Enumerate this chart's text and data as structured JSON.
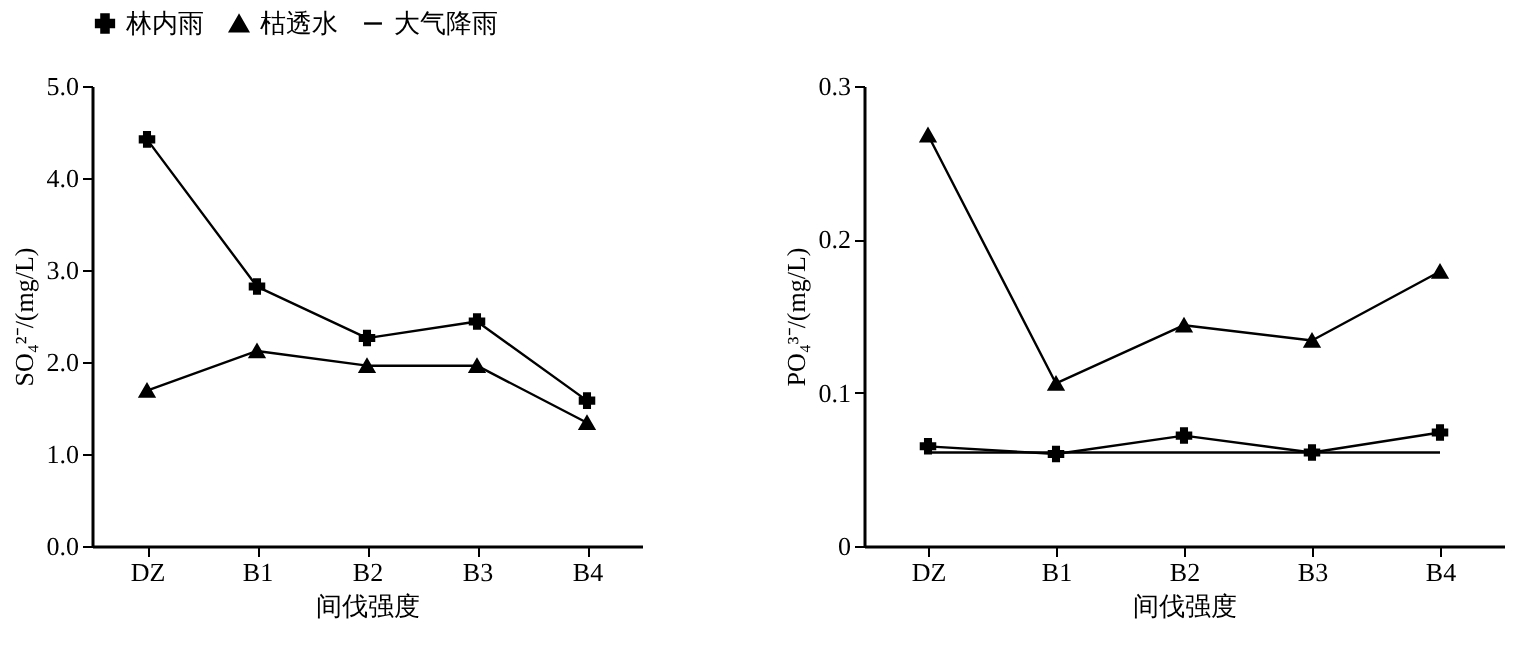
{
  "chart_data": [
    {
      "type": "line",
      "xlabel": "间伐强度",
      "ylabel": "SO₄²⁻/(mg/L)",
      "categories": [
        "DZ",
        "B1",
        "B2",
        "B3",
        "B4"
      ],
      "ylim": [
        0,
        5
      ],
      "yticks": [
        {
          "value": 0,
          "label": "0.0"
        },
        {
          "value": 1,
          "label": "1.0"
        },
        {
          "value": 2,
          "label": "2.0"
        },
        {
          "value": 3,
          "label": "3.0"
        },
        {
          "value": 4,
          "label": "4.0"
        },
        {
          "value": 5,
          "label": "5.0"
        }
      ],
      "grid": false,
      "legend": "top",
      "line_style": "solid",
      "series": [
        {
          "name": "林内雨",
          "color": "#000000",
          "marker": "cross",
          "values": [
            4.42,
            2.82,
            2.26,
            2.44,
            1.58
          ]
        },
        {
          "name": "枯透水",
          "color": "#000000",
          "marker": "triangle",
          "values": [
            1.69,
            2.12,
            1.96,
            1.96,
            1.34
          ]
        }
      ]
    },
    {
      "type": "line",
      "xlabel": "间伐强度",
      "ylabel": "PO₄³⁻/(mg/L)",
      "categories": [
        "DZ",
        "B1",
        "B2",
        "B3",
        "B4"
      ],
      "ylim": [
        0,
        0.3
      ],
      "yticks": [
        0,
        0.1,
        0.2,
        0.3
      ],
      "grid": false,
      "legend": "top",
      "line_style": "solid",
      "series": [
        {
          "name": "林内雨",
          "color": "#000000",
          "marker": "cross",
          "values": [
            0.065,
            0.06,
            0.072,
            0.061,
            0.074
          ]
        },
        {
          "name": "枯透水",
          "color": "#000000",
          "marker": "triangle",
          "values": [
            0.268,
            0.106,
            0.144,
            0.134,
            0.179
          ]
        },
        {
          "name": "大气降雨",
          "color": "#000000",
          "marker": "none",
          "values": [
            0.061,
            0.061,
            0.061,
            0.061,
            0.061
          ]
        }
      ]
    }
  ]
}
